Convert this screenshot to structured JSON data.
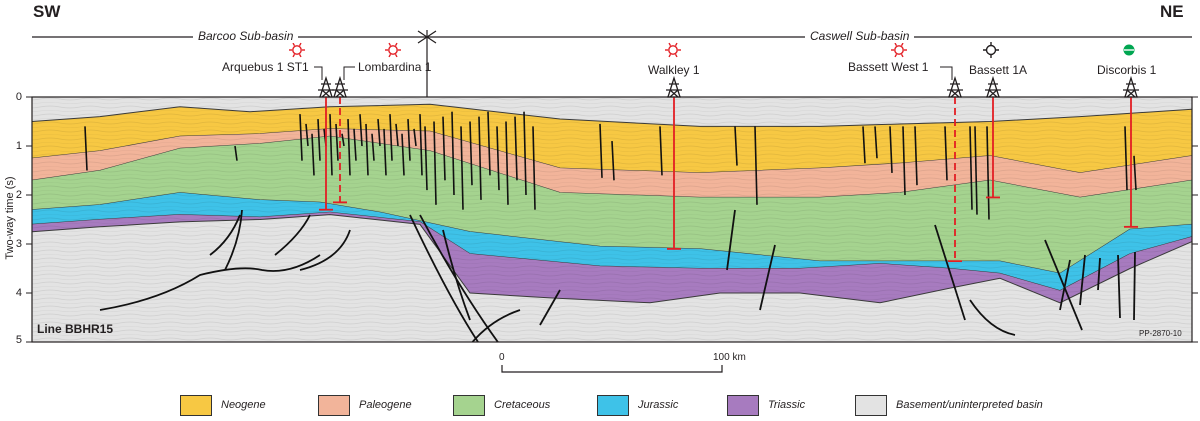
{
  "header": {
    "left_direction": "SW",
    "right_direction": "NE",
    "sub_basins": [
      {
        "name": "Barcoo Sub-basin"
      },
      {
        "name": "Caswell Sub-basin"
      }
    ]
  },
  "section": {
    "line_name": "Line BBHR15",
    "figure_reference": "PP-2870-10",
    "y_axis": {
      "label": "Two-way time (s)",
      "ticks": [
        "0",
        "1",
        "2",
        "3",
        "4",
        "5"
      ],
      "range_s": [
        0,
        5
      ]
    }
  },
  "wells": [
    {
      "name": "Arquebus 1 ST1",
      "status": "gas-show",
      "status_color": "#e31e24",
      "total_depth_twt_s": 2.3,
      "track": "solid"
    },
    {
      "name": "Lombardina 1",
      "status": "gas-show",
      "status_color": "#e31e24",
      "total_depth_twt_s": 2.15,
      "track": "dashed"
    },
    {
      "name": "Walkley 1",
      "status": "gas-show",
      "status_color": "#e31e24",
      "total_depth_twt_s": 3.1,
      "track": "solid"
    },
    {
      "name": "Bassett West 1",
      "status": "gas-show",
      "status_color": "#e31e24",
      "total_depth_twt_s": 3.35,
      "track": "dashed"
    },
    {
      "name": "Bassett 1A",
      "status": "dry",
      "status_color": "#231f20",
      "total_depth_twt_s": 2.05,
      "track": "solid"
    },
    {
      "name": "Discorbis 1",
      "status": "oil-show",
      "status_color": "#00a651",
      "total_depth_twt_s": 2.65,
      "track": "solid"
    }
  ],
  "scale_bar": {
    "start_label": "0",
    "end_label": "100 km"
  },
  "legend": [
    {
      "label": "Neogene",
      "color": "#f7c843"
    },
    {
      "label": "Paleogene",
      "color": "#f2b49a"
    },
    {
      "label": "Cretaceous",
      "color": "#a5d38f"
    },
    {
      "label": "Jurassic",
      "color": "#3ec2e8"
    },
    {
      "label": "Triassic",
      "color": "#a77bbf"
    },
    {
      "label": "Basement/uninterpreted basin",
      "color": "#e3e3e3"
    }
  ]
}
